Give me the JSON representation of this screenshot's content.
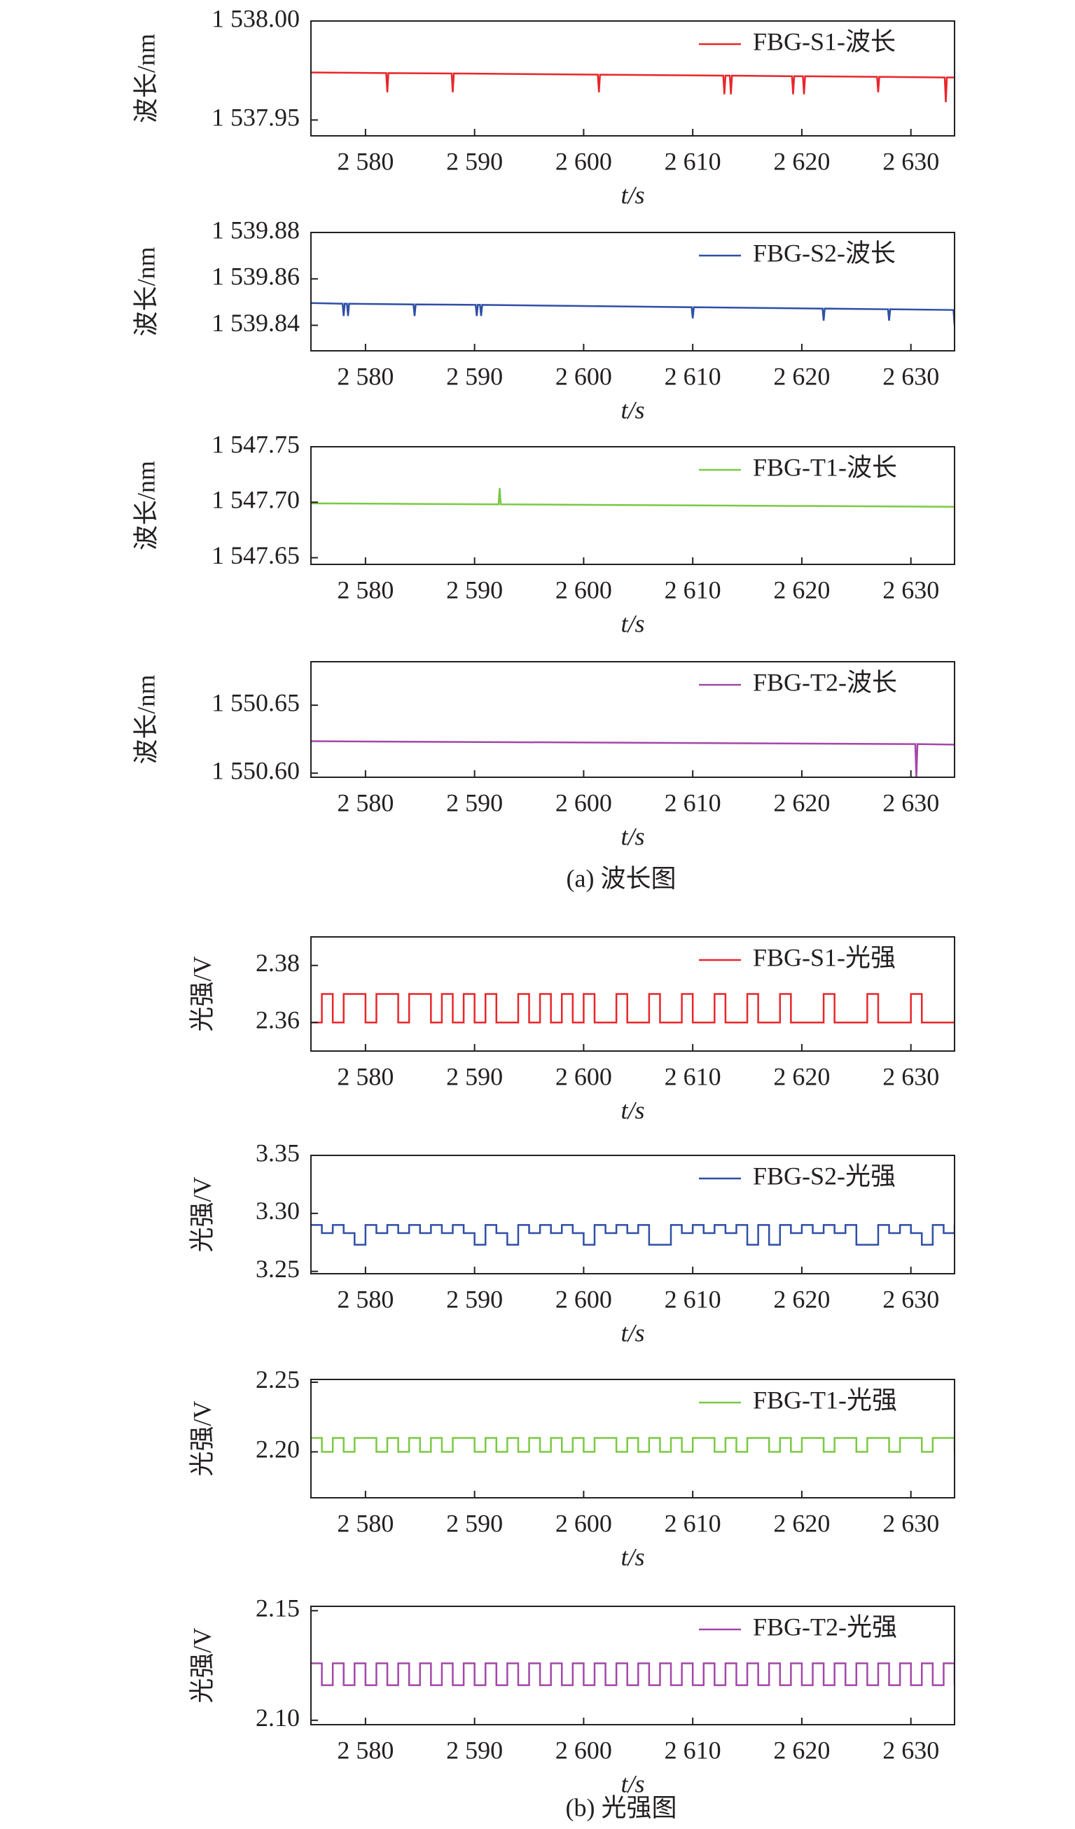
{
  "figure_captions": [
    "(a) 波长图",
    "(b) 光强图"
  ],
  "chart_data": [
    {
      "type": "line",
      "y_label": "波长/nm",
      "x_label": "t/s",
      "xlim": [
        2575,
        2634
      ],
      "ylim": [
        1537.942,
        1538.0
      ],
      "xticks": [
        {
          "value": 2580,
          "label": "2 580"
        },
        {
          "value": 2590,
          "label": "2 590"
        },
        {
          "value": 2600,
          "label": "2 600"
        },
        {
          "value": 2610,
          "label": "2 610"
        },
        {
          "value": 2620,
          "label": "2 620"
        },
        {
          "value": 2630,
          "label": "2 630"
        }
      ],
      "yticks": [
        {
          "value": 1537.95,
          "label": "1 537.95"
        },
        {
          "value": 1538.0,
          "label": "1 538.00"
        }
      ],
      "legend": "upper right",
      "x": [
        2575,
        2581.9,
        2582,
        2582.1,
        2587.9,
        2588,
        2588.1,
        2601.3,
        2601.4,
        2601.5,
        2612.8,
        2612.9,
        2613,
        2613.4,
        2613.5,
        2613.6,
        2619.1,
        2619.2,
        2619.3,
        2620.1,
        2620.2,
        2620.3,
        2626.9,
        2627,
        2627.1,
        2633.1,
        2633.2,
        2633.3,
        2634
      ],
      "series": [
        {
          "name": "FBG-S1-波长",
          "color": "#e8262a",
          "values": [
            1537.974,
            1537.9737,
            1537.964,
            1537.9737,
            1537.9735,
            1537.964,
            1537.9735,
            1537.9729,
            1537.964,
            1537.9729,
            1537.9724,
            1537.963,
            1537.9724,
            1537.9724,
            1537.963,
            1537.9724,
            1537.9721,
            1537.963,
            1537.9721,
            1537.9721,
            1537.963,
            1537.9721,
            1537.9718,
            1537.964,
            1537.9718,
            1537.9715,
            1537.959,
            1537.9715,
            1537.9715
          ]
        }
      ]
    },
    {
      "type": "line",
      "y_label": "波长/nm",
      "x_label": "t/s",
      "xlim": [
        2575,
        2634
      ],
      "ylim": [
        1539.829,
        1539.88
      ],
      "xticks": [
        {
          "value": 2580,
          "label": "2 580"
        },
        {
          "value": 2590,
          "label": "2 590"
        },
        {
          "value": 2600,
          "label": "2 600"
        },
        {
          "value": 2610,
          "label": "2 610"
        },
        {
          "value": 2620,
          "label": "2 620"
        },
        {
          "value": 2630,
          "label": "2 630"
        }
      ],
      "yticks": [
        {
          "value": 1539.84,
          "label": "1 539.84"
        },
        {
          "value": 1539.86,
          "label": "1 539.86"
        },
        {
          "value": 1539.88,
          "label": "1 539.88"
        }
      ],
      "legend": "upper right",
      "x": [
        2575,
        2577.9,
        2578,
        2578.1,
        2578.3,
        2578.4,
        2578.5,
        2584.4,
        2584.5,
        2584.6,
        2590.1,
        2590.2,
        2590.3,
        2590.5,
        2590.6,
        2590.7,
        2609.9,
        2610,
        2610.1,
        2621.9,
        2622,
        2622.1,
        2627.9,
        2628,
        2628.1,
        2633.9,
        2634
      ],
      "series": [
        {
          "name": "FBG-S2-波长",
          "color": "#2e4fa6",
          "values": [
            1539.8496,
            1539.8493,
            1539.844,
            1539.8493,
            1539.8493,
            1539.844,
            1539.8493,
            1539.849,
            1539.844,
            1539.849,
            1539.8488,
            1539.844,
            1539.8488,
            1539.8488,
            1539.844,
            1539.8488,
            1539.8478,
            1539.843,
            1539.8478,
            1539.8472,
            1539.842,
            1539.8472,
            1539.8469,
            1539.842,
            1539.8469,
            1539.8466,
            1539.84
          ]
        }
      ]
    },
    {
      "type": "line",
      "y_label": "波长/nm",
      "x_label": "t/s",
      "xlim": [
        2575,
        2634
      ],
      "ylim": [
        1547.644,
        1547.75
      ],
      "xticks": [
        {
          "value": 2580,
          "label": "2 580"
        },
        {
          "value": 2590,
          "label": "2 590"
        },
        {
          "value": 2600,
          "label": "2 600"
        },
        {
          "value": 2610,
          "label": "2 610"
        },
        {
          "value": 2620,
          "label": "2 620"
        },
        {
          "value": 2630,
          "label": "2 630"
        }
      ],
      "yticks": [
        {
          "value": 1547.65,
          "label": "1 547.65"
        },
        {
          "value": 1547.7,
          "label": "1 547.70"
        },
        {
          "value": 1547.75,
          "label": "1 547.75"
        }
      ],
      "legend": "upper right",
      "x": [
        2575,
        2592.2,
        2592.3,
        2592.4,
        2634
      ],
      "series": [
        {
          "name": "FBG-T1-波长",
          "color": "#7ac943",
          "values": [
            1547.699,
            1547.6981,
            1547.7127,
            1547.6981,
            1547.6959
          ]
        }
      ]
    },
    {
      "type": "line",
      "y_label": "波长/nm",
      "x_label": "t/s",
      "xlim": [
        2575,
        2634
      ],
      "ylim": [
        1550.597,
        1550.682
      ],
      "xticks": [
        {
          "value": 2580,
          "label": "2 580"
        },
        {
          "value": 2590,
          "label": "2 590"
        },
        {
          "value": 2600,
          "label": "2 600"
        },
        {
          "value": 2610,
          "label": "2 610"
        },
        {
          "value": 2620,
          "label": "2 620"
        },
        {
          "value": 2630,
          "label": "2 630"
        }
      ],
      "yticks": [
        {
          "value": 1550.6,
          "label": "1 550.60"
        },
        {
          "value": 1550.65,
          "label": "1 550.65"
        }
      ],
      "legend": "upper right",
      "x": [
        2575,
        2630.4,
        2630.5,
        2630.6,
        2634
      ],
      "series": [
        {
          "name": "FBG-T2-波长",
          "color": "#a347a8",
          "values": [
            1550.6235,
            1550.6214,
            1550.597,
            1550.6214,
            1550.621
          ]
        }
      ]
    },
    {
      "type": "line",
      "step": true,
      "y_label": "光强/V",
      "x_label": "t/s",
      "xlim": [
        2575,
        2634
      ],
      "ylim": [
        2.35,
        2.39
      ],
      "xticks": [
        {
          "value": 2580,
          "label": "2 580"
        },
        {
          "value": 2590,
          "label": "2 590"
        },
        {
          "value": 2600,
          "label": "2 600"
        },
        {
          "value": 2610,
          "label": "2 610"
        },
        {
          "value": 2620,
          "label": "2 620"
        },
        {
          "value": 2630,
          "label": "2 630"
        }
      ],
      "yticks": [
        2.36,
        2.38
      ],
      "legend": "upper right",
      "x": [
        2575,
        2576,
        2577,
        2578,
        2579,
        2580,
        2581,
        2582,
        2583,
        2584,
        2585,
        2586,
        2587,
        2588,
        2589,
        2590,
        2591,
        2592,
        2593,
        2594,
        2595,
        2596,
        2597,
        2598,
        2599,
        2600,
        2601,
        2602,
        2603,
        2604,
        2605,
        2606,
        2607,
        2608,
        2609,
        2610,
        2611,
        2612,
        2613,
        2614,
        2615,
        2616,
        2617,
        2618,
        2619,
        2620,
        2621,
        2622,
        2623,
        2624,
        2625,
        2626,
        2627,
        2628,
        2629,
        2630,
        2631,
        2632,
        2633,
        2634
      ],
      "series": [
        {
          "name": "FBG-S1-光强",
          "color": "#e8262a",
          "values": [
            2.36,
            2.37,
            2.36,
            2.37,
            2.37,
            2.36,
            2.37,
            2.37,
            2.36,
            2.37,
            2.37,
            2.36,
            2.37,
            2.36,
            2.37,
            2.36,
            2.37,
            2.36,
            2.36,
            2.37,
            2.36,
            2.37,
            2.36,
            2.37,
            2.36,
            2.37,
            2.36,
            2.36,
            2.37,
            2.36,
            2.36,
            2.37,
            2.36,
            2.36,
            2.37,
            2.36,
            2.36,
            2.37,
            2.36,
            2.36,
            2.37,
            2.36,
            2.36,
            2.37,
            2.36,
            2.36,
            2.36,
            2.37,
            2.36,
            2.36,
            2.36,
            2.37,
            2.36,
            2.36,
            2.36,
            2.37,
            2.36,
            2.36,
            2.36,
            2.36
          ]
        }
      ]
    },
    {
      "type": "line",
      "step": true,
      "y_label": "光强/V",
      "x_label": "t/s",
      "xlim": [
        2575,
        2634
      ],
      "ylim": [
        3.248,
        3.35
      ],
      "xticks": [
        {
          "value": 2580,
          "label": "2 580"
        },
        {
          "value": 2590,
          "label": "2 590"
        },
        {
          "value": 2600,
          "label": "2 600"
        },
        {
          "value": 2610,
          "label": "2 610"
        },
        {
          "value": 2620,
          "label": "2 620"
        },
        {
          "value": 2630,
          "label": "2 630"
        }
      ],
      "yticks": [
        3.25,
        {
          "value": 3.3,
          "label": "3.30"
        },
        3.35
      ],
      "legend": "upper right",
      "x": [
        2575,
        2576,
        2577,
        2578,
        2579,
        2580,
        2581,
        2582,
        2583,
        2584,
        2585,
        2586,
        2587,
        2588,
        2589,
        2590,
        2591,
        2592,
        2593,
        2594,
        2595,
        2596,
        2597,
        2598,
        2599,
        2600,
        2601,
        2602,
        2603,
        2604,
        2605,
        2606,
        2607,
        2608,
        2609,
        2610,
        2611,
        2612,
        2613,
        2614,
        2615,
        2616,
        2617,
        2618,
        2619,
        2620,
        2621,
        2622,
        2623,
        2624,
        2625,
        2626,
        2627,
        2628,
        2629,
        2630,
        2631,
        2632,
        2633,
        2634
      ],
      "series": [
        {
          "name": "FBG-S2-光强",
          "color": "#2e4fa6",
          "values": [
            3.29,
            3.283,
            3.29,
            3.283,
            3.273,
            3.29,
            3.283,
            3.29,
            3.283,
            3.29,
            3.283,
            3.29,
            3.283,
            3.29,
            3.283,
            3.273,
            3.29,
            3.283,
            3.273,
            3.29,
            3.283,
            3.29,
            3.283,
            3.29,
            3.283,
            3.273,
            3.29,
            3.283,
            3.29,
            3.283,
            3.29,
            3.273,
            3.273,
            3.29,
            3.283,
            3.29,
            3.283,
            3.29,
            3.283,
            3.29,
            3.273,
            3.29,
            3.273,
            3.29,
            3.283,
            3.29,
            3.283,
            3.29,
            3.283,
            3.29,
            3.273,
            3.273,
            3.29,
            3.283,
            3.29,
            3.283,
            3.273,
            3.29,
            3.283,
            3.29
          ]
        }
      ]
    },
    {
      "type": "line",
      "step": true,
      "y_label": "光强/V",
      "x_label": "t/s",
      "xlim": [
        2575,
        2634
      ],
      "ylim": [
        2.167,
        2.252
      ],
      "xticks": [
        {
          "value": 2580,
          "label": "2 580"
        },
        {
          "value": 2590,
          "label": "2 590"
        },
        {
          "value": 2600,
          "label": "2 600"
        },
        {
          "value": 2610,
          "label": "2 610"
        },
        {
          "value": 2620,
          "label": "2 620"
        },
        {
          "value": 2630,
          "label": "2 630"
        }
      ],
      "yticks": [
        {
          "value": 2.2,
          "label": "2.20"
        },
        2.25
      ],
      "legend": "upper right",
      "x": [
        2575,
        2576,
        2577,
        2578,
        2579,
        2580,
        2581,
        2582,
        2583,
        2584,
        2585,
        2586,
        2587,
        2588,
        2589,
        2590,
        2591,
        2592,
        2593,
        2594,
        2595,
        2596,
        2597,
        2598,
        2599,
        2600,
        2601,
        2602,
        2603,
        2604,
        2605,
        2606,
        2607,
        2608,
        2609,
        2610,
        2611,
        2612,
        2613,
        2614,
        2615,
        2616,
        2617,
        2618,
        2619,
        2620,
        2621,
        2622,
        2623,
        2624,
        2625,
        2626,
        2627,
        2628,
        2629,
        2630,
        2631,
        2632,
        2633,
        2634
      ],
      "series": [
        {
          "name": "FBG-T1-光强",
          "color": "#7ac943",
          "values": [
            2.21,
            2.2,
            2.21,
            2.2,
            2.21,
            2.21,
            2.2,
            2.21,
            2.2,
            2.21,
            2.2,
            2.21,
            2.2,
            2.21,
            2.21,
            2.2,
            2.21,
            2.2,
            2.21,
            2.2,
            2.21,
            2.2,
            2.21,
            2.2,
            2.21,
            2.2,
            2.21,
            2.21,
            2.2,
            2.21,
            2.2,
            2.21,
            2.2,
            2.21,
            2.2,
            2.21,
            2.21,
            2.2,
            2.21,
            2.2,
            2.21,
            2.21,
            2.2,
            2.21,
            2.2,
            2.21,
            2.21,
            2.2,
            2.21,
            2.21,
            2.2,
            2.21,
            2.21,
            2.2,
            2.21,
            2.21,
            2.2,
            2.21,
            2.21,
            2.2
          ]
        }
      ]
    },
    {
      "type": "line",
      "step": true,
      "y_label": "光强/V",
      "x_label": "t/s",
      "xlim": [
        2575,
        2634
      ],
      "ylim": [
        2.098,
        2.152
      ],
      "xticks": [
        {
          "value": 2580,
          "label": "2 580"
        },
        {
          "value": 2590,
          "label": "2 590"
        },
        {
          "value": 2600,
          "label": "2 600"
        },
        {
          "value": 2610,
          "label": "2 610"
        },
        {
          "value": 2620,
          "label": "2 620"
        },
        {
          "value": 2630,
          "label": "2 630"
        }
      ],
      "yticks": [
        {
          "value": 2.1,
          "label": "2.10"
        },
        2.15
      ],
      "legend": "upper right",
      "x": [
        2575,
        2576,
        2577,
        2578,
        2579,
        2580,
        2581,
        2582,
        2583,
        2584,
        2585,
        2586,
        2587,
        2588,
        2589,
        2590,
        2591,
        2592,
        2593,
        2594,
        2595,
        2596,
        2597,
        2598,
        2599,
        2600,
        2601,
        2602,
        2603,
        2604,
        2605,
        2606,
        2607,
        2608,
        2609,
        2610,
        2611,
        2612,
        2613,
        2614,
        2615,
        2616,
        2617,
        2618,
        2619,
        2620,
        2621,
        2622,
        2623,
        2624,
        2625,
        2626,
        2627,
        2628,
        2629,
        2630,
        2631,
        2632,
        2633,
        2634
      ],
      "series": [
        {
          "name": "FBG-T2-光强",
          "color": "#a347a8",
          "values": [
            2.126,
            2.116,
            2.126,
            2.116,
            2.126,
            2.116,
            2.126,
            2.116,
            2.126,
            2.116,
            2.126,
            2.116,
            2.126,
            2.116,
            2.126,
            2.116,
            2.126,
            2.116,
            2.126,
            2.116,
            2.126,
            2.116,
            2.126,
            2.116,
            2.126,
            2.116,
            2.126,
            2.116,
            2.126,
            2.116,
            2.126,
            2.116,
            2.126,
            2.116,
            2.126,
            2.116,
            2.126,
            2.116,
            2.126,
            2.116,
            2.126,
            2.116,
            2.126,
            2.116,
            2.126,
            2.116,
            2.126,
            2.116,
            2.126,
            2.116,
            2.126,
            2.116,
            2.126,
            2.116,
            2.126,
            2.116,
            2.126,
            2.116,
            2.126,
            2.116
          ]
        }
      ]
    }
  ]
}
